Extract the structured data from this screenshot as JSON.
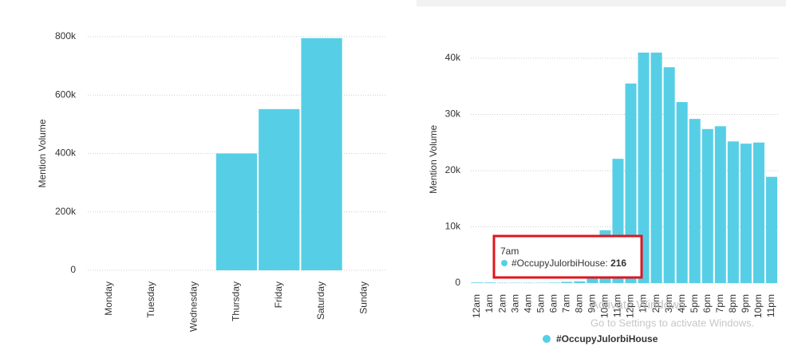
{
  "chart_data": [
    {
      "type": "bar",
      "y_label": "Mention Volume",
      "categories": [
        "Monday",
        "Tuesday",
        "Wednesday",
        "Thursday",
        "Friday",
        "Saturday",
        "Sunday"
      ],
      "values": [
        0,
        0,
        0,
        400000,
        552000,
        795000,
        0
      ],
      "color": "#56cfe6",
      "ylim": [
        0,
        800000
      ],
      "yticks": [
        0,
        {
          "value": 200000,
          "label": "200k"
        },
        {
          "value": 400000,
          "label": "400k"
        },
        {
          "value": 600000,
          "label": "600k"
        },
        {
          "value": 800000,
          "label": "800k"
        }
      ],
      "grid": true
    },
    {
      "type": "bar",
      "y_label": "Mention Volume",
      "categories": [
        "12am",
        "1am",
        "2am",
        "3am",
        "4am",
        "5am",
        "6am",
        "7am",
        "8am",
        "9am",
        "10am",
        "11am",
        "12pm",
        "1pm",
        "2pm",
        "3pm",
        "4pm",
        "5pm",
        "6pm",
        "7pm",
        "8pm",
        "9pm",
        "10pm",
        "11pm"
      ],
      "series": [
        {
          "name": "#OccupyJulorbiHouse",
          "color": "#56cfe6",
          "values": [
            100,
            100,
            50,
            50,
            50,
            50,
            80,
            216,
            300,
            1000,
            9400,
            22100,
            35500,
            41000,
            41000,
            38400,
            32200,
            29200,
            27400,
            27900,
            25200,
            24800,
            25000,
            18900
          ]
        }
      ],
      "ylim": [
        0,
        44000
      ],
      "yticks": [
        0,
        {
          "value": 10000,
          "label": "10k"
        },
        {
          "value": 20000,
          "label": "20k"
        },
        {
          "value": 30000,
          "label": "30k"
        },
        {
          "value": 40000,
          "label": "40k"
        }
      ],
      "grid": true,
      "tooltip_index": 7
    }
  ],
  "watermark": {
    "title": "Activate Windows",
    "text": "Go to Settings to activate Windows."
  }
}
